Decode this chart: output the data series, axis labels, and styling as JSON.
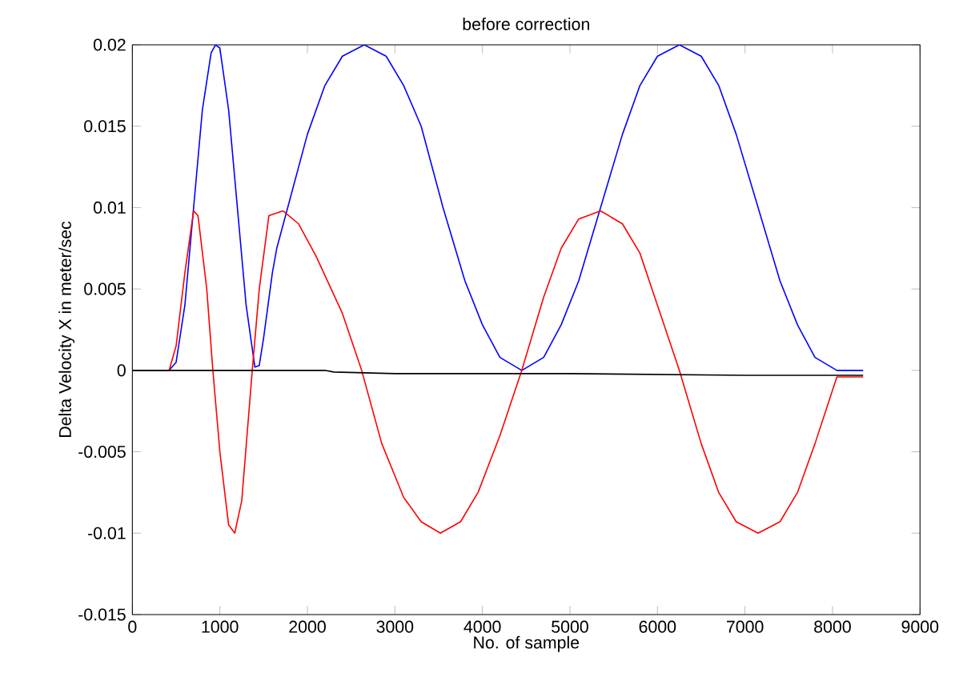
{
  "chart_data": {
    "type": "line",
    "title": "before correction",
    "xlabel": "No. of sample",
    "ylabel": "Delta Velocity X in meter/sec",
    "xlim": [
      0,
      9000
    ],
    "ylim": [
      -0.015,
      0.02
    ],
    "xticks": [
      0,
      1000,
      2000,
      3000,
      4000,
      5000,
      6000,
      7000,
      8000,
      9000
    ],
    "yticks": [
      -0.015,
      -0.01,
      -0.005,
      0,
      0.005,
      0.01,
      0.015,
      0.02
    ],
    "grid": false,
    "marker": "none",
    "line_style": "solid",
    "series": [
      {
        "color": "#0000ff",
        "x": [
          0,
          420,
          500,
          600,
          700,
          800,
          900,
          950,
          1000,
          1100,
          1200,
          1300,
          1400,
          1450,
          1500,
          1600,
          1650,
          1700,
          1800,
          2000,
          2200,
          2400,
          2650,
          2900,
          3100,
          3300,
          3550,
          3800,
          4000,
          4200,
          4450,
          4700,
          4900,
          5100,
          5350,
          5600,
          5800,
          6000,
          6250,
          6500,
          6700,
          6900,
          7150,
          7400,
          7600,
          7800,
          8050,
          8350
        ],
        "values": [
          0,
          0,
          0.0005,
          0.004,
          0.01,
          0.016,
          0.0195,
          0.02,
          0.0198,
          0.016,
          0.01,
          0.004,
          0.0002,
          0.0003,
          0.002,
          0.006,
          0.0075,
          0.0085,
          0.0105,
          0.0145,
          0.0175,
          0.0193,
          0.02,
          0.0193,
          0.0175,
          0.015,
          0.01,
          0.0055,
          0.0028,
          0.0008,
          0,
          0.0008,
          0.0028,
          0.0055,
          0.01,
          0.0145,
          0.0175,
          0.0193,
          0.02,
          0.0193,
          0.0175,
          0.0145,
          0.01,
          0.0055,
          0.0028,
          0.0008,
          0,
          0
        ]
      },
      {
        "color": "#ff0000",
        "x": [
          0,
          420,
          500,
          600,
          700,
          750,
          850,
          920,
          1000,
          1100,
          1170,
          1250,
          1370,
          1450,
          1560,
          1720,
          1900,
          2100,
          2400,
          2620,
          2850,
          3100,
          3300,
          3520,
          3750,
          3950,
          4200,
          4450,
          4700,
          4900,
          5100,
          5350,
          5600,
          5800,
          6000,
          6250,
          6500,
          6700,
          6900,
          7150,
          7400,
          7600,
          7800,
          8050,
          8350
        ],
        "values": [
          0,
          0,
          0.0015,
          0.006,
          0.0098,
          0.0095,
          0.005,
          0,
          -0.005,
          -0.0095,
          -0.01,
          -0.008,
          0,
          0.005,
          0.0095,
          0.0098,
          0.009,
          0.007,
          0.0035,
          0,
          -0.0045,
          -0.0078,
          -0.0093,
          -0.01,
          -0.0093,
          -0.0075,
          -0.004,
          0,
          0.0045,
          0.0075,
          0.0093,
          0.0098,
          0.009,
          0.0072,
          0.004,
          0,
          -0.0045,
          -0.0075,
          -0.0093,
          -0.01,
          -0.0093,
          -0.0075,
          -0.0045,
          -0.0004,
          -0.0004
        ]
      },
      {
        "color": "#000000",
        "x": [
          0,
          2200,
          2300,
          3000,
          5000,
          7000,
          8350
        ],
        "values": [
          0,
          0,
          -0.0001,
          -0.0002,
          -0.0002,
          -0.0003,
          -0.0003
        ]
      }
    ]
  }
}
